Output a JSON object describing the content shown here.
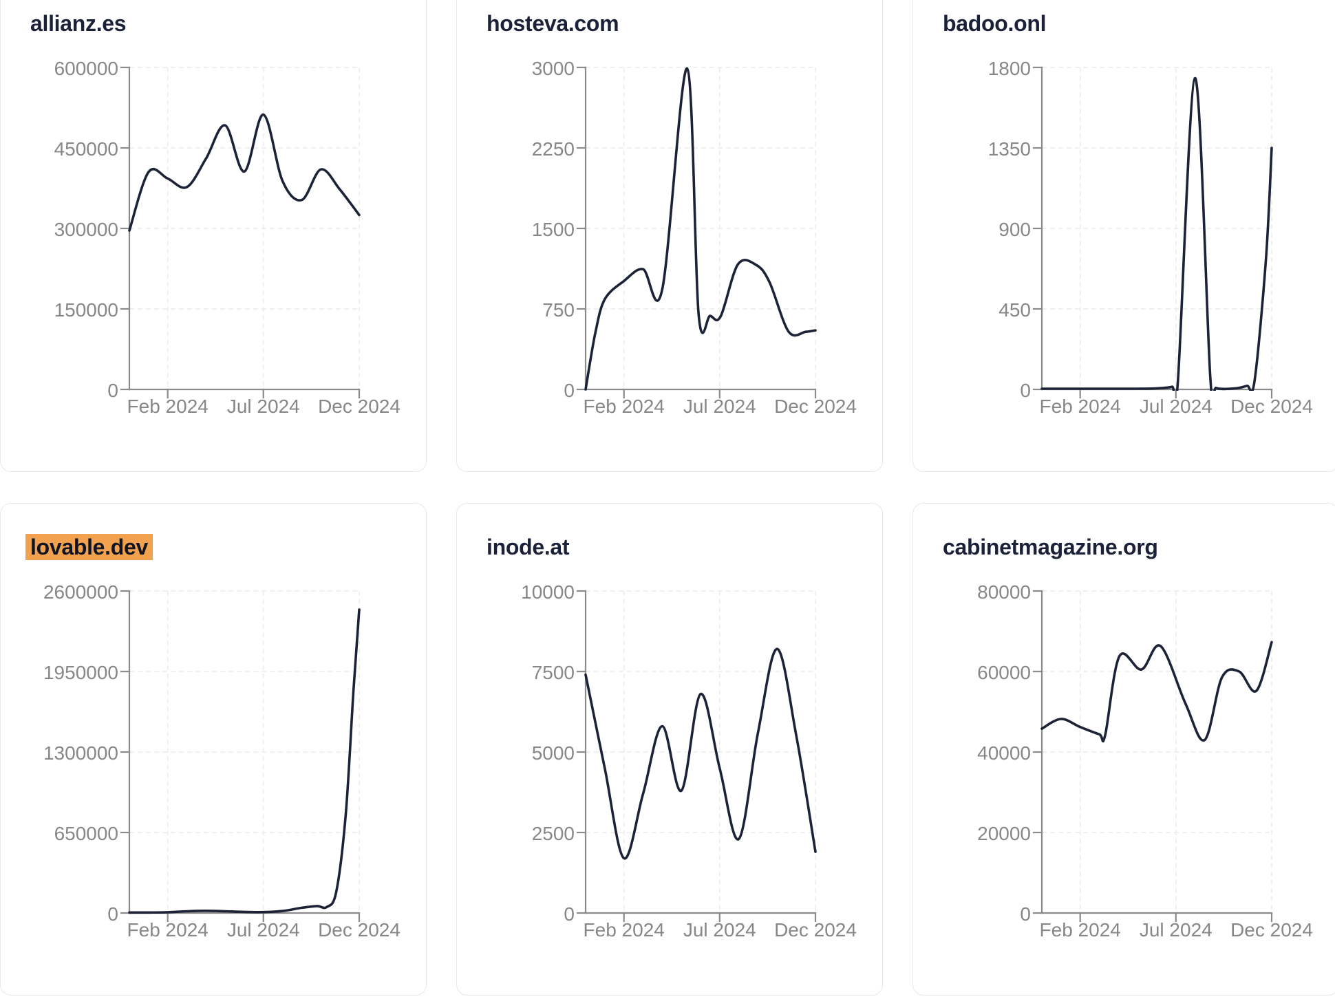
{
  "theme": {
    "page_bg": "#ffffff",
    "card_bg": "#ffffff",
    "card_border": "#e4e9f0",
    "title_color": "#1b2138",
    "highlight_bg": "#f2a24f",
    "line_color": "#1c2337",
    "grid_color": "#ebebeb",
    "axis_color": "#8b8b8b",
    "label_color": "#878787"
  },
  "chart_data": [
    {
      "type": "line",
      "title": "allianz.es",
      "highlighted": false,
      "x_unit": "months (0 = Dec 2023, 12 = Dec 2024)",
      "x_domain": [
        0,
        12
      ],
      "x_ticks": [
        {
          "x": 2,
          "label": "Feb 2024"
        },
        {
          "x": 7,
          "label": "Jul 2024"
        },
        {
          "x": 12,
          "label": "Dec 2024"
        }
      ],
      "y_ticks": [
        0,
        150000,
        300000,
        450000,
        600000
      ],
      "points": [
        [
          0,
          296000
        ],
        [
          1,
          405000
        ],
        [
          2,
          393000
        ],
        [
          3,
          377000
        ],
        [
          4,
          430000
        ],
        [
          5,
          492000
        ],
        [
          6,
          406000
        ],
        [
          7,
          512000
        ],
        [
          8,
          388000
        ],
        [
          9,
          353000
        ],
        [
          10,
          410000
        ],
        [
          11,
          372000
        ],
        [
          12,
          325000
        ]
      ]
    },
    {
      "type": "line",
      "title": "hosteva.com",
      "highlighted": false,
      "x_unit": "months (0 = Dec 2023, 12 = Dec 2024)",
      "x_domain": [
        0,
        12
      ],
      "x_ticks": [
        {
          "x": 2,
          "label": "Feb 2024"
        },
        {
          "x": 7,
          "label": "Jul 2024"
        },
        {
          "x": 12,
          "label": "Dec 2024"
        }
      ],
      "y_ticks": [
        0,
        750,
        1500,
        2250,
        3000
      ],
      "points": [
        [
          0,
          0
        ],
        [
          0.5,
          520
        ],
        [
          1,
          840
        ],
        [
          2,
          1010
        ],
        [
          3,
          1120
        ],
        [
          4,
          930
        ],
        [
          5.3,
          2990
        ],
        [
          5.9,
          700
        ],
        [
          6.5,
          685
        ],
        [
          7.05,
          680
        ],
        [
          7.95,
          1165
        ],
        [
          8.9,
          1160
        ],
        [
          9.6,
          1000
        ],
        [
          10.6,
          538
        ],
        [
          11.5,
          537
        ],
        [
          12,
          550
        ]
      ]
    },
    {
      "type": "line",
      "title": "badoo.onl",
      "highlighted": false,
      "x_unit": "months (0 = Dec 2023, 12 = Dec 2024)",
      "x_domain": [
        0,
        12
      ],
      "x_ticks": [
        {
          "x": 2,
          "label": "Feb 2024"
        },
        {
          "x": 7,
          "label": "Jul 2024"
        },
        {
          "x": 12,
          "label": "Dec 2024"
        }
      ],
      "y_ticks": [
        0,
        450,
        900,
        1350,
        1800
      ],
      "points": [
        [
          0,
          4
        ],
        [
          1,
          4
        ],
        [
          2,
          4
        ],
        [
          3,
          4
        ],
        [
          4,
          4
        ],
        [
          5,
          4
        ],
        [
          6,
          6
        ],
        [
          6.8,
          15
        ],
        [
          7.1,
          40
        ],
        [
          8,
          1740
        ],
        [
          8.8,
          60
        ],
        [
          9.1,
          8
        ],
        [
          10,
          5
        ],
        [
          10.7,
          20
        ],
        [
          11.1,
          45
        ],
        [
          11.7,
          730
        ],
        [
          12,
          1350
        ]
      ]
    },
    {
      "type": "line",
      "title": "lovable.dev",
      "highlighted": true,
      "x_unit": "months (0 = Dec 2023, 12 = Dec 2024)",
      "x_domain": [
        0,
        12
      ],
      "x_ticks": [
        {
          "x": 2,
          "label": "Feb 2024"
        },
        {
          "x": 7,
          "label": "Jul 2024"
        },
        {
          "x": 12,
          "label": "Dec 2024"
        }
      ],
      "y_ticks": [
        0,
        650000,
        1300000,
        1950000,
        2600000
      ],
      "points": [
        [
          0,
          4000
        ],
        [
          1,
          4000
        ],
        [
          2,
          6000
        ],
        [
          3,
          14000
        ],
        [
          4,
          18000
        ],
        [
          5,
          14000
        ],
        [
          6,
          9000
        ],
        [
          7,
          7000
        ],
        [
          8,
          16000
        ],
        [
          9,
          42000
        ],
        [
          9.8,
          56000
        ],
        [
          10.3,
          48000
        ],
        [
          10.8,
          170000
        ],
        [
          11.3,
          800000
        ],
        [
          11.7,
          1800000
        ],
        [
          12,
          2450000
        ]
      ]
    },
    {
      "type": "line",
      "title": "inode.at",
      "highlighted": false,
      "x_unit": "months (0 = Dec 2023, 12 = Dec 2024)",
      "x_domain": [
        0,
        12
      ],
      "x_ticks": [
        {
          "x": 2,
          "label": "Feb 2024"
        },
        {
          "x": 7,
          "label": "Jul 2024"
        },
        {
          "x": 12,
          "label": "Dec 2024"
        }
      ],
      "y_ticks": [
        0,
        2500,
        5000,
        7500,
        10000
      ],
      "points": [
        [
          0,
          7400
        ],
        [
          1,
          4500
        ],
        [
          2,
          1700
        ],
        [
          3,
          3700
        ],
        [
          4,
          5800
        ],
        [
          5,
          3800
        ],
        [
          6,
          6800
        ],
        [
          7,
          4500
        ],
        [
          8,
          2300
        ],
        [
          9,
          5600
        ],
        [
          10,
          8200
        ],
        [
          11,
          5500
        ],
        [
          12,
          1900
        ]
      ]
    },
    {
      "type": "line",
      "title": "cabinetmagazine.org",
      "highlighted": false,
      "x_unit": "months (0 = Dec 2023, 12 = Dec 2024)",
      "x_domain": [
        0,
        12
      ],
      "x_ticks": [
        {
          "x": 2,
          "label": "Feb 2024"
        },
        {
          "x": 7,
          "label": "Jul 2024"
        },
        {
          "x": 12,
          "label": "Dec 2024"
        }
      ],
      "y_ticks": [
        0,
        20000,
        40000,
        60000,
        80000
      ],
      "points": [
        [
          0,
          45800
        ],
        [
          1,
          48200
        ],
        [
          2,
          46200
        ],
        [
          3,
          44400
        ],
        [
          3.3,
          44100
        ],
        [
          4.05,
          63800
        ],
        [
          5.2,
          60500
        ],
        [
          6.2,
          66300
        ],
        [
          7.5,
          52000
        ],
        [
          8.5,
          43000
        ],
        [
          9.4,
          58500
        ],
        [
          10.3,
          60000
        ],
        [
          11.2,
          55200
        ],
        [
          12,
          67300
        ]
      ]
    }
  ]
}
